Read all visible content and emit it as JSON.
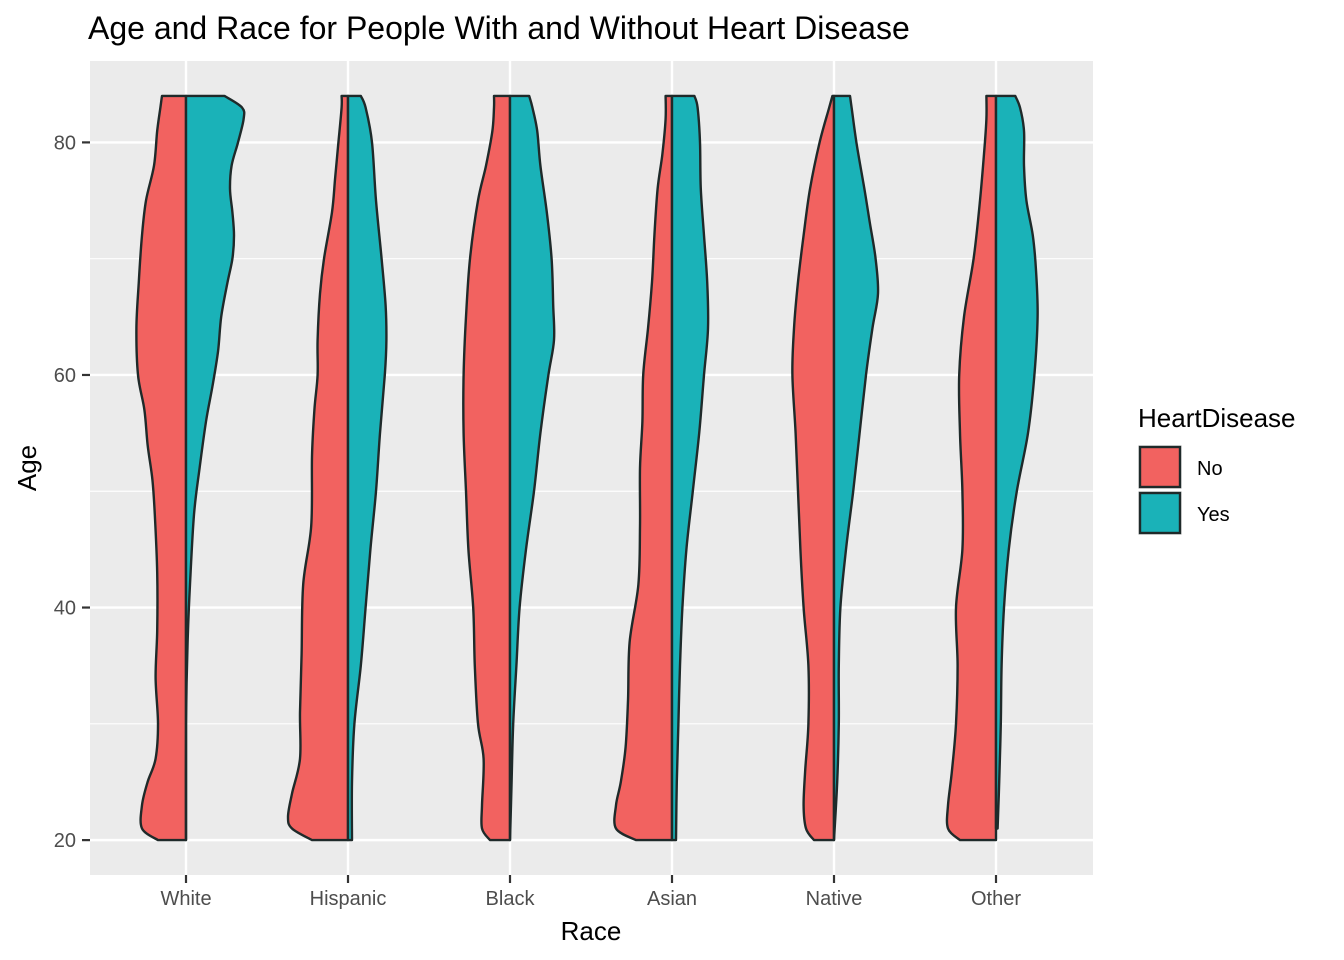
{
  "chart_data": {
    "type": "violin",
    "title": "Age and Race for People With and Without Heart Disease",
    "xlabel": "Race",
    "ylabel": "Age",
    "ylim": [
      17,
      87
    ],
    "y_ticks": [
      20,
      40,
      60,
      80
    ],
    "y_minor_ticks": [
      30,
      50,
      70
    ],
    "categories": [
      "White",
      "Hispanic",
      "Black",
      "Asian",
      "Native",
      "Other"
    ],
    "legend": {
      "title": "HeartDisease",
      "position": "right",
      "entries": [
        {
          "label": "No",
          "color": "#F8766D"
        },
        {
          "label": "Yes",
          "color": "#00BFC4"
        }
      ]
    },
    "colors": {
      "no": "#F26260",
      "yes": "#1AB2B8",
      "panel": "#EBEBEB",
      "grid": "#FFFFFF",
      "outline": "#1F2A2A"
    },
    "series": [
      {
        "name": "No",
        "side": "left",
        "profiles": {
          "White": [
            [
              20,
              0.35
            ],
            [
              21,
              0.55
            ],
            [
              23,
              0.55
            ],
            [
              25,
              0.48
            ],
            [
              27,
              0.38
            ],
            [
              30,
              0.35
            ],
            [
              34,
              0.38
            ],
            [
              38,
              0.36
            ],
            [
              43,
              0.36
            ],
            [
              48,
              0.39
            ],
            [
              51,
              0.42
            ],
            [
              54,
              0.48
            ],
            [
              57,
              0.52
            ],
            [
              60,
              0.6
            ],
            [
              64,
              0.62
            ],
            [
              68,
              0.59
            ],
            [
              72,
              0.55
            ],
            [
              75,
              0.5
            ],
            [
              78,
              0.4
            ],
            [
              81,
              0.36
            ],
            [
              83,
              0.32
            ],
            [
              84,
              0.3
            ]
          ],
          "Hispanic": [
            [
              20,
              0.45
            ],
            [
              21,
              0.7
            ],
            [
              22,
              0.75
            ],
            [
              24,
              0.7
            ],
            [
              27,
              0.6
            ],
            [
              31,
              0.6
            ],
            [
              36,
              0.58
            ],
            [
              42,
              0.56
            ],
            [
              47,
              0.46
            ],
            [
              53,
              0.45
            ],
            [
              57,
              0.42
            ],
            [
              60,
              0.38
            ],
            [
              63,
              0.38
            ],
            [
              67,
              0.35
            ],
            [
              70,
              0.3
            ],
            [
              74,
              0.2
            ],
            [
              77,
              0.16
            ],
            [
              80,
              0.12
            ],
            [
              83,
              0.08
            ],
            [
              84,
              0.08
            ]
          ],
          "Black": [
            [
              20,
              0.25
            ],
            [
              21,
              0.35
            ],
            [
              23,
              0.35
            ],
            [
              27,
              0.33
            ],
            [
              30,
              0.4
            ],
            [
              35,
              0.44
            ],
            [
              40,
              0.46
            ],
            [
              45,
              0.52
            ],
            [
              50,
              0.55
            ],
            [
              55,
              0.58
            ],
            [
              60,
              0.58
            ],
            [
              65,
              0.55
            ],
            [
              70,
              0.5
            ],
            [
              75,
              0.4
            ],
            [
              78,
              0.3
            ],
            [
              81,
              0.22
            ],
            [
              83,
              0.2
            ],
            [
              84,
              0.2
            ]
          ],
          "Asian": [
            [
              20,
              0.45
            ],
            [
              21,
              0.7
            ],
            [
              23,
              0.7
            ],
            [
              25,
              0.64
            ],
            [
              28,
              0.58
            ],
            [
              32,
              0.55
            ],
            [
              37,
              0.53
            ],
            [
              42,
              0.42
            ],
            [
              47,
              0.4
            ],
            [
              52,
              0.4
            ],
            [
              56,
              0.37
            ],
            [
              60,
              0.36
            ],
            [
              64,
              0.3
            ],
            [
              68,
              0.25
            ],
            [
              72,
              0.22
            ],
            [
              76,
              0.18
            ],
            [
              79,
              0.12
            ],
            [
              82,
              0.08
            ],
            [
              84,
              0.08
            ]
          ],
          "Native": [
            [
              20,
              0.25
            ],
            [
              21,
              0.35
            ],
            [
              23,
              0.38
            ],
            [
              26,
              0.36
            ],
            [
              30,
              0.32
            ],
            [
              35,
              0.32
            ],
            [
              40,
              0.38
            ],
            [
              45,
              0.42
            ],
            [
              50,
              0.45
            ],
            [
              55,
              0.48
            ],
            [
              60,
              0.52
            ],
            [
              64,
              0.5
            ],
            [
              68,
              0.45
            ],
            [
              72,
              0.38
            ],
            [
              76,
              0.3
            ],
            [
              80,
              0.18
            ],
            [
              83,
              0.06
            ],
            [
              84,
              0.02
            ]
          ],
          "Other": [
            [
              20,
              0.45
            ],
            [
              21,
              0.6
            ],
            [
              23,
              0.6
            ],
            [
              26,
              0.55
            ],
            [
              30,
              0.5
            ],
            [
              35,
              0.48
            ],
            [
              40,
              0.5
            ],
            [
              45,
              0.42
            ],
            [
              50,
              0.42
            ],
            [
              55,
              0.45
            ],
            [
              60,
              0.46
            ],
            [
              65,
              0.4
            ],
            [
              70,
              0.28
            ],
            [
              75,
              0.2
            ],
            [
              79,
              0.15
            ],
            [
              82,
              0.12
            ],
            [
              84,
              0.12
            ]
          ]
        }
      },
      {
        "name": "Yes",
        "side": "right",
        "profiles": {
          "White": [
            [
              20,
              0.0
            ],
            [
              30,
              0.0
            ],
            [
              37,
              0.02
            ],
            [
              42,
              0.05
            ],
            [
              48,
              0.1
            ],
            [
              52,
              0.17
            ],
            [
              56,
              0.25
            ],
            [
              59,
              0.33
            ],
            [
              62,
              0.4
            ],
            [
              65,
              0.44
            ],
            [
              68,
              0.52
            ],
            [
              70,
              0.58
            ],
            [
              72,
              0.6
            ],
            [
              74,
              0.58
            ],
            [
              76,
              0.55
            ],
            [
              78,
              0.57
            ],
            [
              80,
              0.65
            ],
            [
              82,
              0.72
            ],
            [
              83,
              0.7
            ],
            [
              84,
              0.48
            ]
          ],
          "Hispanic": [
            [
              20,
              0.05
            ],
            [
              25,
              0.05
            ],
            [
              30,
              0.08
            ],
            [
              35,
              0.16
            ],
            [
              40,
              0.22
            ],
            [
              45,
              0.28
            ],
            [
              50,
              0.35
            ],
            [
              55,
              0.4
            ],
            [
              60,
              0.46
            ],
            [
              63,
              0.48
            ],
            [
              66,
              0.47
            ],
            [
              70,
              0.42
            ],
            [
              75,
              0.35
            ],
            [
              80,
              0.3
            ],
            [
              83,
              0.22
            ],
            [
              84,
              0.16
            ]
          ],
          "Black": [
            [
              20,
              0.0
            ],
            [
              25,
              0.02
            ],
            [
              30,
              0.04
            ],
            [
              35,
              0.08
            ],
            [
              40,
              0.12
            ],
            [
              45,
              0.2
            ],
            [
              50,
              0.3
            ],
            [
              55,
              0.38
            ],
            [
              60,
              0.48
            ],
            [
              63,
              0.55
            ],
            [
              66,
              0.54
            ],
            [
              70,
              0.52
            ],
            [
              74,
              0.46
            ],
            [
              78,
              0.38
            ],
            [
              81,
              0.34
            ],
            [
              83,
              0.28
            ],
            [
              84,
              0.24
            ]
          ],
          "Asian": [
            [
              20,
              0.05
            ],
            [
              25,
              0.06
            ],
            [
              30,
              0.08
            ],
            [
              35,
              0.1
            ],
            [
              40,
              0.13
            ],
            [
              45,
              0.18
            ],
            [
              50,
              0.26
            ],
            [
              55,
              0.34
            ],
            [
              60,
              0.4
            ],
            [
              64,
              0.45
            ],
            [
              68,
              0.44
            ],
            [
              72,
              0.4
            ],
            [
              76,
              0.36
            ],
            [
              80,
              0.35
            ],
            [
              83,
              0.32
            ],
            [
              84,
              0.28
            ]
          ],
          "Native": [
            [
              20,
              0.0
            ],
            [
              25,
              0.04
            ],
            [
              30,
              0.06
            ],
            [
              35,
              0.06
            ],
            [
              40,
              0.08
            ],
            [
              45,
              0.15
            ],
            [
              50,
              0.24
            ],
            [
              55,
              0.32
            ],
            [
              60,
              0.4
            ],
            [
              64,
              0.48
            ],
            [
              67,
              0.55
            ],
            [
              70,
              0.52
            ],
            [
              73,
              0.45
            ],
            [
              76,
              0.38
            ],
            [
              80,
              0.28
            ],
            [
              83,
              0.22
            ],
            [
              84,
              0.2
            ]
          ],
          "Other": [
            [
              21,
              0.02
            ],
            [
              25,
              0.04
            ],
            [
              30,
              0.06
            ],
            [
              35,
              0.07
            ],
            [
              40,
              0.1
            ],
            [
              45,
              0.16
            ],
            [
              50,
              0.26
            ],
            [
              55,
              0.4
            ],
            [
              60,
              0.48
            ],
            [
              65,
              0.52
            ],
            [
              69,
              0.5
            ],
            [
              72,
              0.46
            ],
            [
              75,
              0.38
            ],
            [
              78,
              0.35
            ],
            [
              81,
              0.35
            ],
            [
              83,
              0.3
            ],
            [
              84,
              0.24
            ]
          ]
        }
      }
    ]
  }
}
